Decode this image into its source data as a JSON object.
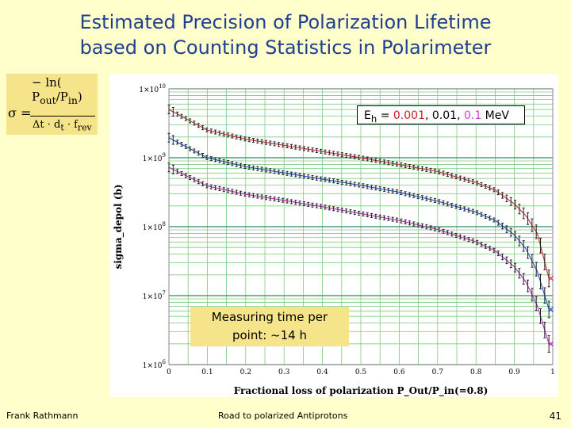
{
  "slide": {
    "title_line1": "Estimated Precision of Polarization Lifetime",
    "title_line2": "based on Counting Statistics in Polarimeter",
    "footer_left": "Frank Rathmann",
    "footer_center": "Road to polarized Antiprotons",
    "page_number": "41"
  },
  "formula": {
    "lhs": "σ =",
    "numerator": "− ln( P",
    "p_out_sub": "out",
    "p_in": "P",
    "p_in_sub": "in",
    "close": ")",
    "denominator": "Δt · d",
    "d_sub": "t",
    "f": " · f",
    "f_sub": "rev"
  },
  "legend": {
    "prefix": "E",
    "prefix_sub": "h",
    "eq": " = ",
    "v1": "0.001",
    "sep1": ", ",
    "v2": "0.01",
    "sep2": ", ",
    "v3": "0.1",
    "unit": " MeV",
    "colors": [
      "#cc2222",
      "#000000",
      "#cc44cc"
    ]
  },
  "callout": {
    "line1": "Measuring time per",
    "line2": "point: ~14 h"
  },
  "chart_data": {
    "type": "line",
    "xlabel": "Fractional loss of polarization P_Out/P_in(=0.8)",
    "ylabel": "sigma_depol (b)",
    "xlim": [
      0,
      1
    ],
    "ylim_log10": [
      6,
      10
    ],
    "yscale": "log",
    "x_ticks": [
      "0",
      "0.1",
      "0.2",
      "0.3",
      "0.4",
      "0.5",
      "0.6",
      "0.7",
      "0.8",
      "0.9",
      "1"
    ],
    "y_ticks": [
      "1×10^6",
      "1×10^7",
      "1×10^8",
      "1×10^9",
      "1×10^10"
    ],
    "grid": true,
    "series": [
      {
        "name": "Eh = 0.001 MeV",
        "color": "#cc3333",
        "x": [
          0.0,
          0.1,
          0.2,
          0.3,
          0.4,
          0.5,
          0.6,
          0.7,
          0.8,
          0.85,
          0.9,
          0.93,
          0.96,
          0.99
        ],
        "log10_y": [
          9.7,
          9.4,
          9.27,
          9.18,
          9.09,
          9.0,
          8.9,
          8.8,
          8.64,
          8.53,
          8.33,
          8.16,
          7.9,
          7.25
        ]
      },
      {
        "name": "Eh = 0.01 MeV",
        "color": "#2255cc",
        "x": [
          0.0,
          0.1,
          0.2,
          0.3,
          0.4,
          0.5,
          0.6,
          0.7,
          0.8,
          0.85,
          0.9,
          0.93,
          0.96,
          0.99
        ],
        "log10_y": [
          9.29,
          9.0,
          8.87,
          8.78,
          8.69,
          8.6,
          8.5,
          8.37,
          8.21,
          8.09,
          7.88,
          7.68,
          7.35,
          6.8
        ]
      },
      {
        "name": "Eh = 0.1 MeV",
        "color": "#bb33bb",
        "x": [
          0.0,
          0.1,
          0.2,
          0.3,
          0.4,
          0.5,
          0.6,
          0.7,
          0.8,
          0.85,
          0.9,
          0.93,
          0.96,
          0.99
        ],
        "log10_y": [
          8.86,
          8.59,
          8.47,
          8.38,
          8.29,
          8.19,
          8.09,
          7.96,
          7.78,
          7.65,
          7.42,
          7.2,
          6.85,
          6.3
        ]
      }
    ]
  }
}
